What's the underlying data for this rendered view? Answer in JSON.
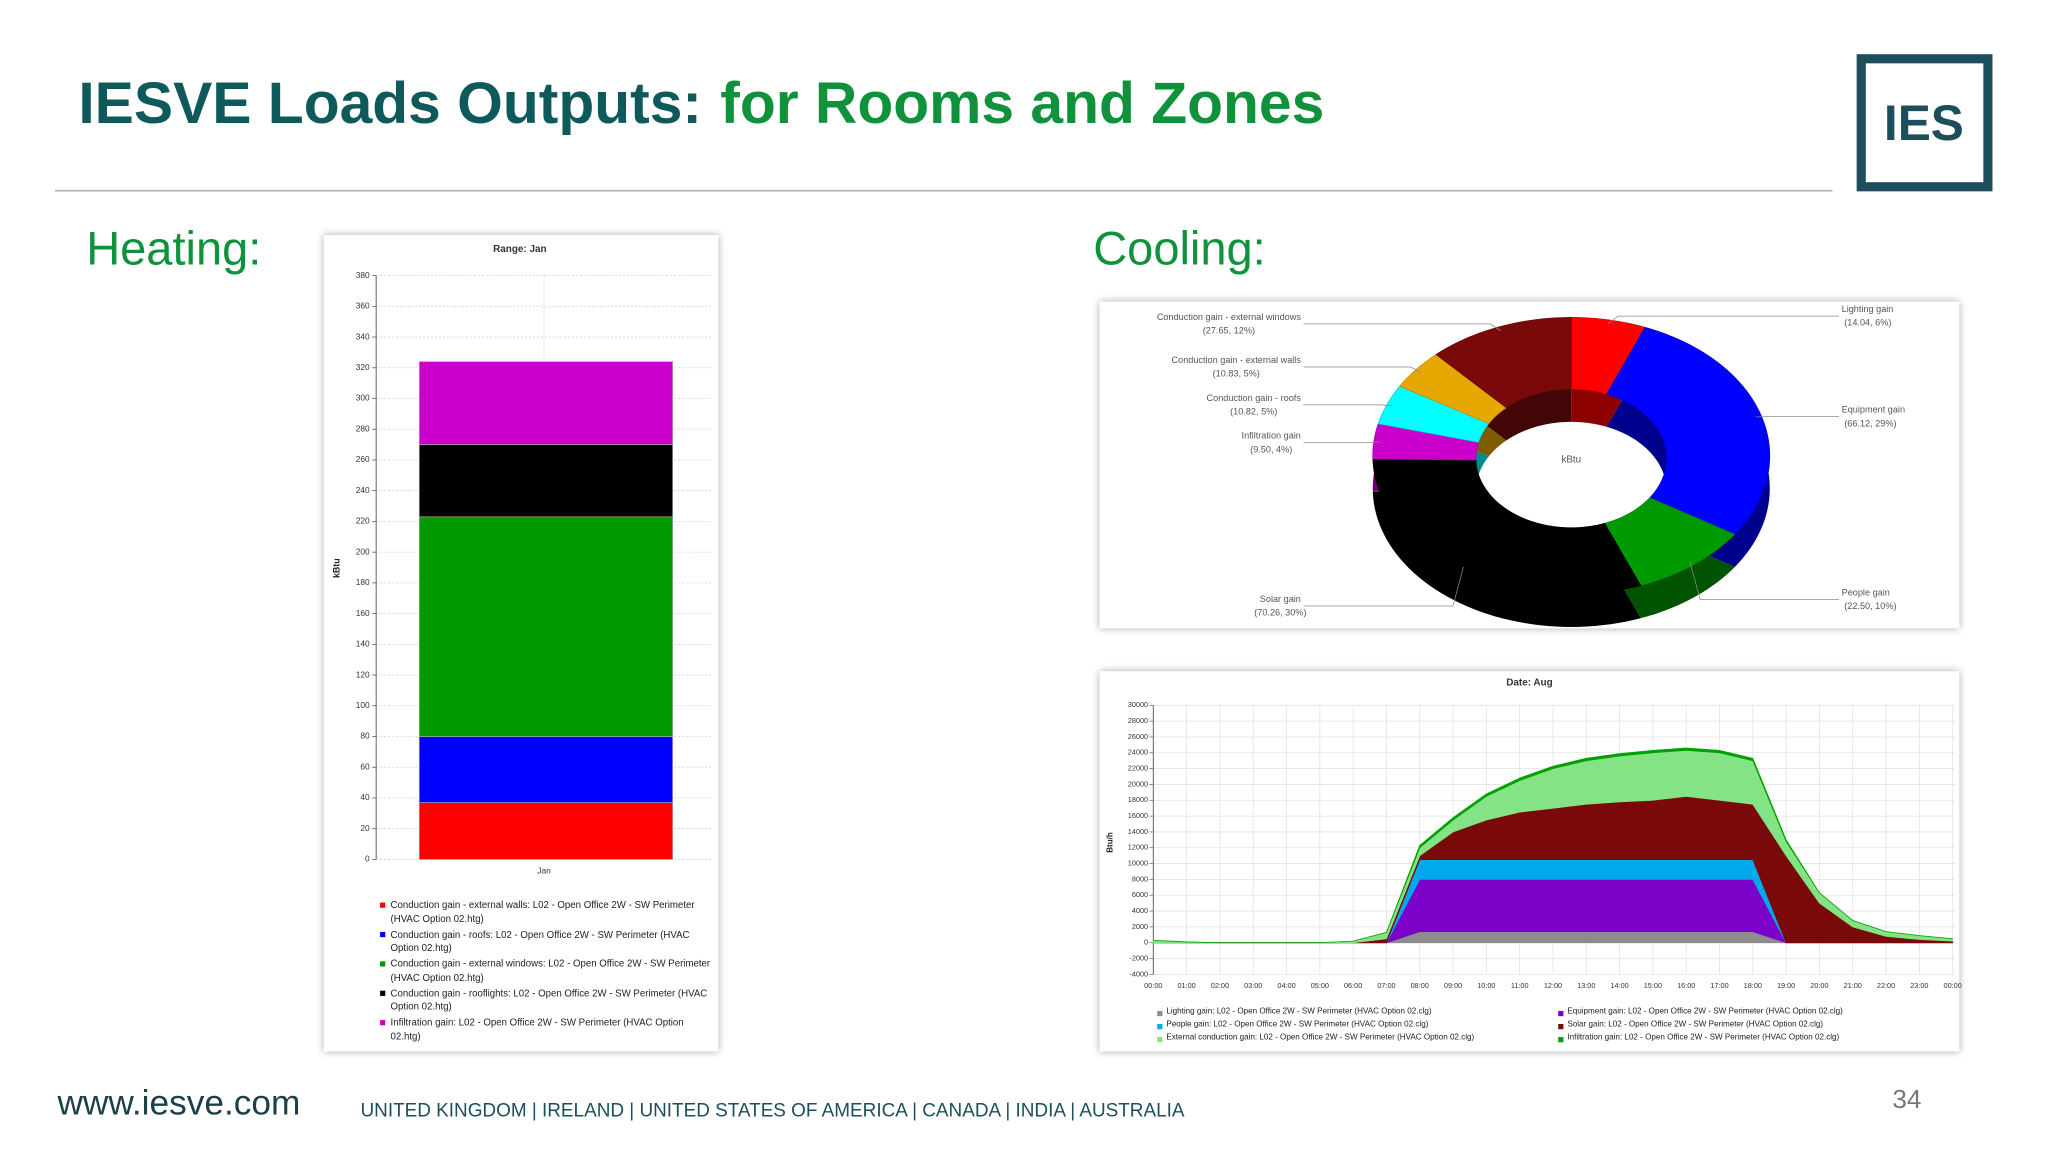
{
  "slide": {
    "title_part1": "IESVE Loads Outputs:",
    "title_part2": "for Rooms and Zones",
    "heating_label": "Heating:",
    "cooling_label": "Cooling:",
    "logo": "IES",
    "website": "www.iesve.com",
    "countries": "UNITED KINGDOM | IRELAND | UNITED STATES OF AMERICA | CANADA | INDIA | AUSTRALIA",
    "page_number": 34
  },
  "chart_data": [
    {
      "type": "stacked-bar",
      "title": "Range: Jan",
      "y_label": "kBtu",
      "categories": [
        "Jan"
      ],
      "ylim": [
        0,
        380
      ],
      "yticks": [
        0,
        20,
        40,
        60,
        80,
        100,
        120,
        140,
        160,
        180,
        200,
        220,
        240,
        260,
        280,
        300,
        320,
        340,
        360,
        380
      ],
      "grid": true,
      "series": [
        {
          "name": "Conduction gain - external walls: L02 - Open Office 2W - SW Perimeter (HVAC Option 02.htg)",
          "color": "#ff0000",
          "values": [
            37
          ]
        },
        {
          "name": "Conduction gain - roofs: L02 - Open Office 2W - SW Perimeter (HVAC Option 02.htg)",
          "color": "#0000ff",
          "values": [
            43
          ]
        },
        {
          "name": "Conduction gain - external windows: L02 - Open Office 2W - SW Perimeter (HVAC Option 02.htg)",
          "color": "#009900",
          "values": [
            143
          ]
        },
        {
          "name": "Conduction gain - rooflights: L02 - Open Office 2W - SW Perimeter (HVAC Option 02.htg)",
          "color": "#000000",
          "values": [
            47
          ]
        },
        {
          "name": "Infiltration gain: L02 - Open Office 2W - SW Perimeter (HVAC Option 02.htg)",
          "color": "#cc00cc",
          "values": [
            54
          ]
        }
      ]
    },
    {
      "type": "donut",
      "center_label": "kBtu",
      "categories": [
        "Lighting gain",
        "Equipment gain",
        "People gain",
        "Solar gain",
        "Infiltration gain",
        "Conduction gain - roofs",
        "Conduction gain - external walls",
        "Conduction gain - external windows"
      ],
      "values": [
        14.04,
        66.12,
        22.5,
        70.26,
        9.5,
        10.82,
        10.83,
        27.65
      ],
      "value_labels": [
        "(14.04, 6%)",
        "(66.12, 29%)",
        "(22.50, 10%)",
        "(70.26, 30%)",
        "(9.50, 4%)",
        "(10.82, 5%)",
        "(10.83, 5%)",
        "(27.65, 12%)"
      ],
      "colors": [
        "#ff0000",
        "#0000ff",
        "#009900",
        "#000000",
        "#cc00cc",
        "#00ffff",
        "#e6a800",
        "#7a0a0a"
      ]
    },
    {
      "type": "stacked-area",
      "title": "Date: Aug",
      "y_label": "Btu/h",
      "x": [
        "00:00",
        "01:00",
        "02:00",
        "03:00",
        "04:00",
        "05:00",
        "06:00",
        "07:00",
        "08:00",
        "09:00",
        "10:00",
        "11:00",
        "12:00",
        "13:00",
        "14:00",
        "15:00",
        "16:00",
        "17:00",
        "18:00",
        "19:00",
        "20:00",
        "21:00",
        "22:00",
        "23:00",
        "00:00"
      ],
      "ylim": [
        -4000,
        30000
      ],
      "yticks": [
        -4000,
        -2000,
        0,
        2000,
        4000,
        6000,
        8000,
        10000,
        12000,
        14000,
        16000,
        18000,
        20000,
        22000,
        24000,
        26000,
        28000,
        30000
      ],
      "grid": true,
      "series": [
        {
          "name": "Lighting gain: L02 - Open Office 2W - SW Perimeter (HVAC Option 02.clg)",
          "color": "#8c8c8c",
          "values": [
            0,
            0,
            0,
            0,
            0,
            0,
            0,
            0,
            1400,
            1400,
            1400,
            1400,
            1400,
            1400,
            1400,
            1400,
            1400,
            1400,
            1400,
            0,
            0,
            0,
            0,
            0,
            0
          ]
        },
        {
          "name": "Equipment gain: L02 - Open Office 2W - SW Perimeter (HVAC Option 02.clg)",
          "color": "#7b00c8",
          "values": [
            0,
            0,
            0,
            0,
            0,
            0,
            0,
            0,
            6600,
            6600,
            6600,
            6600,
            6600,
            6600,
            6600,
            6600,
            6600,
            6600,
            6600,
            0,
            0,
            0,
            0,
            0,
            0
          ]
        },
        {
          "name": "People gain: L02 - Open Office 2W - SW Perimeter (HVAC Option 02.clg)",
          "color": "#00a8ec",
          "values": [
            0,
            0,
            0,
            0,
            0,
            0,
            0,
            0,
            2500,
            2500,
            2500,
            2500,
            2500,
            2500,
            2500,
            2500,
            2500,
            2500,
            2500,
            0,
            0,
            0,
            0,
            0,
            0
          ]
        },
        {
          "name": "Solar gain: L02 - Open Office 2W - SW Perimeter (HVAC Option 02.clg)",
          "color": "#7a0a0a",
          "values": [
            0,
            0,
            0,
            0,
            0,
            0,
            0,
            500,
            500,
            3500,
            5000,
            6000,
            6500,
            7000,
            7300,
            7500,
            8000,
            7500,
            7000,
            11000,
            5000,
            2000,
            800,
            400,
            200
          ]
        },
        {
          "name": "External conduction gain: L02 - Open Office 2W - SW Perimeter (HVAC Option 02.clg)",
          "color": "#84e384",
          "values": [
            300,
            100,
            0,
            0,
            0,
            0,
            200,
            800,
            1000,
            1500,
            3000,
            4000,
            5000,
            5500,
            5800,
            6000,
            5800,
            6000,
            5500,
            1800,
            1300,
            800,
            600,
            500,
            300
          ]
        },
        {
          "name": "Infiltration gain: L02 - Open Office 2W - SW Perimeter (HVAC Option 02.clg)",
          "color": "#00a000",
          "values": [
            0,
            0,
            0,
            0,
            0,
            0,
            0,
            0,
            300,
            300,
            300,
            300,
            300,
            300,
            300,
            300,
            300,
            300,
            300,
            200,
            0,
            0,
            0,
            0,
            0
          ]
        }
      ]
    }
  ]
}
